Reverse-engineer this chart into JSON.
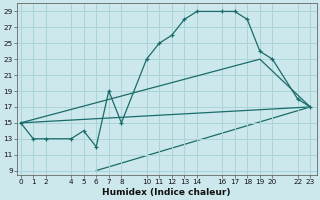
{
  "xlabel": "Humidex (Indice chaleur)",
  "bg_color": "#cce8ec",
  "grid_color": "#aad4d8",
  "line_color": "#1a6b6b",
  "line1_x": [
    0,
    1,
    2,
    4,
    5,
    6,
    7,
    8,
    10,
    11,
    12,
    13,
    14,
    16,
    17,
    18,
    19,
    20,
    22,
    23
  ],
  "line1_y": [
    15,
    13,
    13,
    13,
    14,
    12,
    19,
    15,
    23,
    25,
    26,
    28,
    29,
    29,
    29,
    28,
    24,
    23,
    18,
    17
  ],
  "line2_x": [
    0,
    19,
    23
  ],
  "line2_y": [
    15,
    23,
    17
  ],
  "line3_x": [
    0,
    23
  ],
  "line3_y": [
    15,
    17
  ],
  "line4_x": [
    6,
    23
  ],
  "line4_y": [
    9,
    17
  ],
  "xmin": -0.3,
  "xmax": 23.5,
  "ymin": 8.5,
  "ymax": 30,
  "yticks": [
    9,
    11,
    13,
    15,
    17,
    19,
    21,
    23,
    25,
    27,
    29
  ],
  "xticks": [
    0,
    1,
    2,
    4,
    5,
    6,
    7,
    8,
    10,
    11,
    12,
    13,
    14,
    16,
    17,
    18,
    19,
    20,
    22,
    23
  ],
  "xlabel_fontsize": 6.5,
  "tick_fontsize": 5.2
}
